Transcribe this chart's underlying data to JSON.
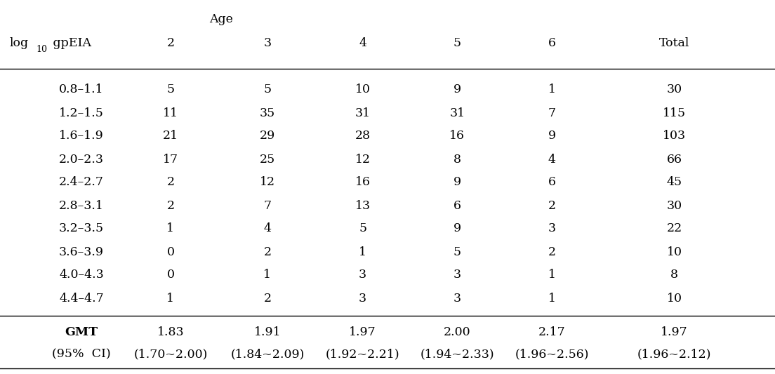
{
  "rows": [
    [
      "0.8–1.1",
      "5",
      "5",
      "10",
      "9",
      "1",
      "30"
    ],
    [
      "1.2–1.5",
      "11",
      "35",
      "31",
      "31",
      "7",
      "115"
    ],
    [
      "1.6–1.9",
      "21",
      "29",
      "28",
      "16",
      "9",
      "103"
    ],
    [
      "2.0–2.3",
      "17",
      "25",
      "12",
      "8",
      "4",
      "66"
    ],
    [
      "2.4–2.7",
      "2",
      "12",
      "16",
      "9",
      "6",
      "45"
    ],
    [
      "2.8–3.1",
      "2",
      "7",
      "13",
      "6",
      "2",
      "30"
    ],
    [
      "3.2–3.5",
      "1",
      "4",
      "5",
      "9",
      "3",
      "22"
    ],
    [
      "3.6–3.9",
      "0",
      "2",
      "1",
      "5",
      "2",
      "10"
    ],
    [
      "4.0–4.3",
      "0",
      "1",
      "3",
      "3",
      "1",
      "8"
    ],
    [
      "4.4–4.7",
      "1",
      "2",
      "3",
      "3",
      "1",
      "10"
    ]
  ],
  "age_cols": [
    "2",
    "3",
    "4",
    "5",
    "6",
    "Total"
  ],
  "gmt_row": [
    "GMT",
    "1.83",
    "1.91",
    "1.97",
    "2.00",
    "2.17",
    "1.97"
  ],
  "ci_row": [
    "(95%  CI)",
    "(1.70~2.00)",
    "(1.84~2.09)",
    "(1.92~2.21)",
    "(1.94~2.33)",
    "(1.96~2.56)",
    "(1.96~2.12)"
  ],
  "background_color": "#ffffff",
  "text_color": "#000000",
  "font_size": 12.5
}
